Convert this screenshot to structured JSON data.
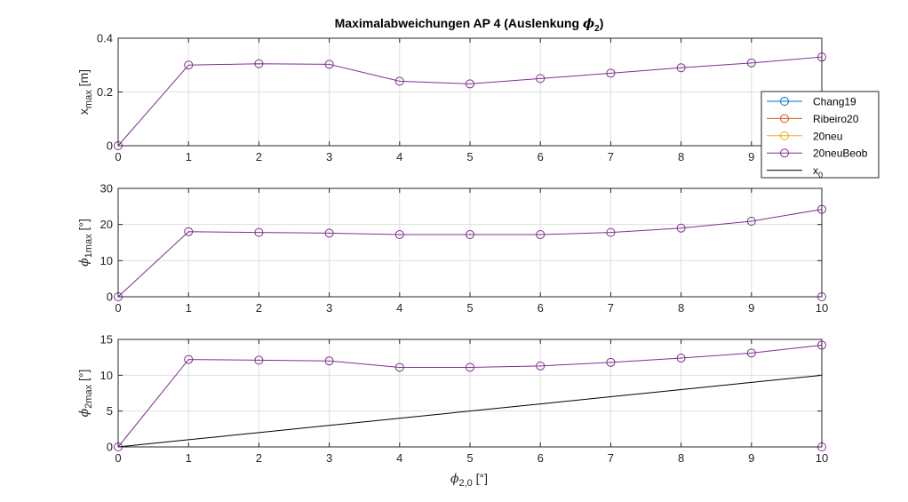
{
  "chart_data": {
    "type": "line",
    "title": "Maximalabweichungen AP 4 (Auslenkung ϕ2)",
    "title_parts": {
      "text": "Maximalabweichungen AP 4 (Auslenkung ",
      "sym": "ϕ",
      "sub": "2",
      "close": ")"
    },
    "colors": {
      "Chang19": "#0072bd",
      "Ribeiro20": "#d95319",
      "20neu": "#edb120",
      "20neuBeob": "#7e2f8e",
      "x0": "#000000",
      "grid": "#dfdfdf",
      "axis": "#262626"
    },
    "xlabel": {
      "sym": "ϕ",
      "sub": "2,0",
      "unit": "[°]"
    },
    "x": [
      0,
      1,
      2,
      3,
      4,
      5,
      6,
      7,
      8,
      9,
      10
    ],
    "xticks": [
      "0",
      "1",
      "2",
      "3",
      "4",
      "5",
      "6",
      "7",
      "8",
      "9",
      "10"
    ],
    "xlim": [
      0,
      10
    ],
    "grid": true,
    "legend": {
      "placement": "right",
      "entries": [
        {
          "label": "Chang19",
          "color": "#0072bd",
          "marker": "circle"
        },
        {
          "label": "Ribeiro20",
          "color": "#d95319",
          "marker": "circle"
        },
        {
          "label": "20neu",
          "color": "#edb120",
          "marker": "circle"
        },
        {
          "label": "20neuBeob",
          "color": "#7e2f8e",
          "marker": "circle"
        },
        {
          "label": "x",
          "sub": "0",
          "color": "#000000",
          "marker": "none"
        }
      ]
    },
    "subplots": [
      {
        "ylabel": {
          "main": "x",
          "sub": "max",
          "unit": "[m]"
        },
        "ylim": [
          0,
          0.4
        ],
        "yticks": [
          0,
          0.2,
          0.4
        ],
        "ytick_labels": [
          "0",
          "0.2",
          "0.4"
        ],
        "series": [
          {
            "name": "Chang19",
            "values": [
              0,
              0,
              0,
              0,
              0,
              0,
              0,
              0,
              0,
              0,
              0
            ]
          },
          {
            "name": "Ribeiro20",
            "values": [
              0,
              0,
              0,
              0,
              0,
              0,
              0,
              0,
              0,
              0,
              0
            ]
          },
          {
            "name": "20neu",
            "values": [
              0,
              0,
              0,
              0,
              0,
              0,
              0,
              0,
              0,
              0,
              0
            ]
          },
          {
            "name": "20neuBeob",
            "values": [
              0,
              0.3,
              0.305,
              0.303,
              0.24,
              0.23,
              0.25,
              0.27,
              0.29,
              0.308,
              0.33
            ],
            "markers": true,
            "drop_to_zero": true
          },
          {
            "name": "x0",
            "values": [
              0,
              0,
              0,
              0,
              0,
              0,
              0,
              0,
              0,
              0,
              0
            ]
          }
        ]
      },
      {
        "ylabel": {
          "sym": "ϕ",
          "sub": "1max",
          "unit": "[°]"
        },
        "ylim": [
          0,
          30
        ],
        "yticks": [
          0,
          10,
          20,
          30
        ],
        "ytick_labels": [
          "0",
          "10",
          "20",
          "30"
        ],
        "series": [
          {
            "name": "Chang19",
            "values": [
              0,
              0,
              0,
              0,
              0,
              0,
              0,
              0,
              0,
              0,
              0
            ]
          },
          {
            "name": "Ribeiro20",
            "values": [
              0,
              0,
              0,
              0,
              0,
              0,
              0,
              0,
              0,
              0,
              0
            ]
          },
          {
            "name": "20neu",
            "values": [
              0,
              0,
              0,
              0,
              0,
              0,
              0,
              0,
              0,
              0,
              0
            ]
          },
          {
            "name": "20neuBeob",
            "values": [
              0,
              18.0,
              17.8,
              17.6,
              17.2,
              17.2,
              17.2,
              17.8,
              19.0,
              20.9,
              24.2
            ],
            "markers": true,
            "drop_to_zero": true
          },
          {
            "name": "x0",
            "values": [
              0,
              0,
              0,
              0,
              0,
              0,
              0,
              0,
              0,
              0,
              0
            ]
          }
        ]
      },
      {
        "ylabel": {
          "sym": "ϕ",
          "sub": "2max",
          "unit": "[°]"
        },
        "ylim": [
          0,
          15
        ],
        "yticks": [
          0,
          5,
          10,
          15
        ],
        "ytick_labels": [
          "0",
          "5",
          "10",
          "15"
        ],
        "series": [
          {
            "name": "Chang19",
            "values": [
              0,
              0,
              0,
              0,
              0,
              0,
              0,
              0,
              0,
              0,
              0
            ]
          },
          {
            "name": "Ribeiro20",
            "values": [
              0,
              0,
              0,
              0,
              0,
              0,
              0,
              0,
              0,
              0,
              0
            ]
          },
          {
            "name": "20neu",
            "values": [
              0,
              0,
              0,
              0,
              0,
              0,
              0,
              0,
              0,
              0,
              0
            ]
          },
          {
            "name": "20neuBeob",
            "values": [
              0,
              12.2,
              12.1,
              12.0,
              11.1,
              11.1,
              11.3,
              11.8,
              12.4,
              13.1,
              14.2
            ],
            "markers": true,
            "drop_to_zero": true
          },
          {
            "name": "x0",
            "values": [
              0,
              1,
              2,
              3,
              4,
              5,
              6,
              7,
              8,
              9,
              10
            ]
          }
        ]
      }
    ]
  }
}
